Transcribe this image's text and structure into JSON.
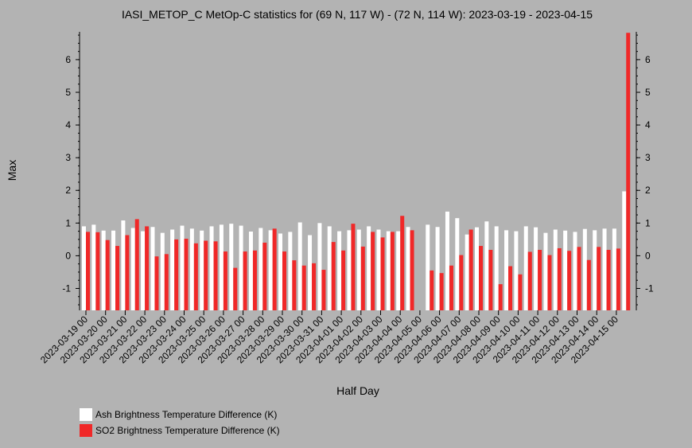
{
  "chart_data": {
    "type": "bar",
    "title": "IASI_METOP_C MetOp-C statistics for (69 N, 117 W) - (72 N, 114 W): 2023-03-19 - 2023-04-15",
    "xlabel": "Half Day",
    "ylabel": "Max",
    "ylim": [
      -1.67,
      6.85
    ],
    "yticks": [
      -1,
      0,
      1,
      2,
      3,
      4,
      5,
      6
    ],
    "x_tick_labels": [
      "2023-03-19 00",
      "2023-03-20 00",
      "2023-03-21 00",
      "2023-03-22 00",
      "2023-03-23 00",
      "2023-03-24 00",
      "2023-03-25 00",
      "2023-03-26 00",
      "2023-03-27 00",
      "2023-03-28 00",
      "2023-03-29 00",
      "2023-03-30 00",
      "2023-03-31 00",
      "2023-04-01 00",
      "2023-04-02 00",
      "2023-04-03 00",
      "2023-04-04 00",
      "2023-04-05 00",
      "2023-04-06 00",
      "2023-04-07 00",
      "2023-04-08 00",
      "2023-04-09 00",
      "2023-04-10 00",
      "2023-04-11 00",
      "2023-04-12 00",
      "2023-04-13 00",
      "2023-04-14 00",
      "2023-04-15 00"
    ],
    "series": [
      {
        "name": "Ash Brightness Temperature Difference (K)",
        "color": "#ffffff",
        "values": [
          0.9,
          0.95,
          0.77,
          0.77,
          1.08,
          0.85,
          0.75,
          0.88,
          0.7,
          0.8,
          0.92,
          0.83,
          0.77,
          0.9,
          0.95,
          0.98,
          0.92,
          0.74,
          0.85,
          0.78,
          0.68,
          0.73,
          1.02,
          0.63,
          1.0,
          0.9,
          0.75,
          0.78,
          0.8,
          0.9,
          0.8,
          0.75,
          0.75,
          0.88,
          null,
          0.95,
          0.88,
          1.35,
          1.15,
          0.65,
          0.87,
          1.05,
          0.9,
          0.78,
          0.75,
          0.9,
          0.87,
          0.7,
          0.8,
          0.77,
          0.73,
          0.82,
          0.78,
          0.83,
          0.83,
          1.97
        ]
      },
      {
        "name": "SO2 Brightness Temperature Difference (K)",
        "color": "#f02828",
        "values": [
          0.73,
          0.72,
          0.48,
          0.3,
          0.63,
          1.12,
          0.9,
          -0.02,
          0.05,
          0.5,
          0.52,
          0.38,
          0.46,
          0.44,
          0.13,
          -0.37,
          0.13,
          0.16,
          0.4,
          0.83,
          0.13,
          -0.14,
          -0.3,
          -0.23,
          -0.43,
          0.42,
          0.16,
          0.98,
          0.28,
          0.73,
          0.56,
          0.73,
          1.22,
          0.78,
          null,
          -0.45,
          -0.53,
          -0.3,
          0.02,
          0.8,
          0.3,
          0.18,
          -0.87,
          -0.32,
          -0.57,
          0.12,
          0.18,
          0.02,
          0.23,
          0.15,
          0.27,
          -0.13,
          0.27,
          0.18,
          0.22,
          6.82
        ]
      }
    ],
    "legend_position": "bottom-left",
    "grid": false
  }
}
